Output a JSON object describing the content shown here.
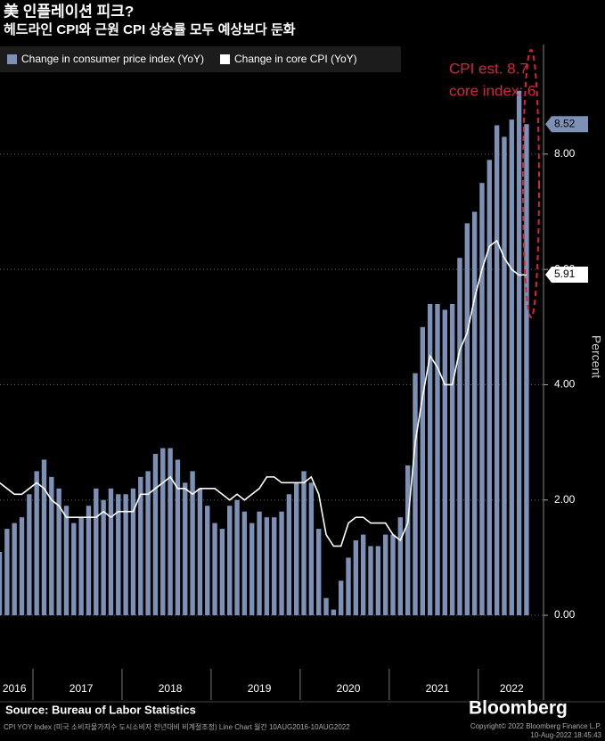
{
  "chart_data": {
    "type": "bar_line",
    "title": "美 인플레이션 피크?",
    "subtitle": "헤드라인 CPI와 근원 CPI 상승률 모두 예상보다 둔화",
    "y_label": "Percent",
    "annotation": [
      "CPI est. 8.7",
      "core index: 6"
    ],
    "source": "Source: Bureau of Labor Statistics",
    "brand": "Bloomberg",
    "footnote": "CPI YOY Index (미국 소비자물가지수 도시소비자 전년대비 비계절조정) Line Chart  월간 10AUG2016-10AUG2022",
    "copyright": [
      "Copyright© 2022 Bloomberg Finance L.P.",
      "10-Aug-2022 18:45:43"
    ],
    "categories": [
      null,
      null,
      "2016",
      null,
      null,
      null,
      null,
      null,
      null,
      null,
      null,
      "2017",
      null,
      null,
      null,
      null,
      null,
      null,
      null,
      null,
      null,
      null,
      null,
      "2018",
      null,
      null,
      null,
      null,
      null,
      null,
      null,
      null,
      null,
      null,
      null,
      "2019",
      null,
      null,
      null,
      null,
      null,
      null,
      null,
      null,
      null,
      null,
      null,
      "2020",
      null,
      null,
      null,
      null,
      null,
      null,
      null,
      null,
      null,
      null,
      null,
      "2021",
      null,
      null,
      null,
      null,
      null,
      null,
      null,
      null,
      null,
      "2022",
      null,
      null
    ],
    "series": [
      {
        "name": "Change in consumer price index (YoY)",
        "color": "#7d90b5",
        "kind": "bar",
        "values": [
          1.1,
          1.5,
          1.6,
          1.7,
          2.1,
          2.5,
          2.7,
          2.4,
          2.2,
          1.9,
          1.6,
          1.7,
          1.9,
          2.2,
          2.0,
          2.2,
          2.1,
          2.1,
          2.2,
          2.4,
          2.5,
          2.8,
          2.9,
          2.9,
          2.7,
          2.3,
          2.5,
          2.2,
          1.9,
          1.6,
          1.5,
          1.9,
          2.0,
          1.8,
          1.6,
          1.8,
          1.7,
          1.7,
          1.8,
          2.1,
          2.3,
          2.5,
          2.3,
          1.5,
          0.3,
          0.1,
          0.6,
          1.0,
          1.3,
          1.4,
          1.2,
          1.2,
          1.4,
          1.4,
          1.7,
          2.6,
          4.2,
          5.0,
          5.4,
          5.4,
          5.3,
          5.4,
          6.2,
          6.8,
          7.0,
          7.5,
          7.9,
          8.5,
          8.3,
          8.6,
          9.1,
          8.52
        ]
      },
      {
        "name": "Change in core CPI (YoY)",
        "color": "#ffffff",
        "kind": "line",
        "values": [
          2.3,
          2.2,
          2.1,
          2.1,
          2.2,
          2.3,
          2.2,
          2.0,
          1.9,
          1.7,
          1.7,
          1.7,
          1.7,
          1.7,
          1.8,
          1.7,
          1.8,
          1.8,
          1.8,
          2.1,
          2.1,
          2.2,
          2.3,
          2.4,
          2.2,
          2.2,
          2.1,
          2.2,
          2.2,
          2.2,
          2.1,
          2.0,
          2.1,
          2.0,
          2.1,
          2.2,
          2.4,
          2.4,
          2.3,
          2.3,
          2.3,
          2.3,
          2.4,
          2.1,
          1.4,
          1.2,
          1.2,
          1.6,
          1.7,
          1.7,
          1.6,
          1.6,
          1.6,
          1.4,
          1.3,
          1.6,
          3.0,
          3.8,
          4.5,
          4.3,
          4.0,
          4.0,
          4.6,
          4.9,
          5.5,
          6.0,
          6.4,
          6.5,
          6.2,
          6.0,
          5.9,
          5.91
        ]
      }
    ],
    "ylim": [
      -0.85,
      9.9
    ],
    "yticks": [
      {
        "value": 0,
        "label": "0.00"
      },
      {
        "value": 2,
        "label": "2.00"
      },
      {
        "value": 4,
        "label": "4.00"
      },
      {
        "value": 6,
        "label": "6.00"
      },
      {
        "value": 8,
        "label": "8.00"
      }
    ],
    "grid": true
  }
}
